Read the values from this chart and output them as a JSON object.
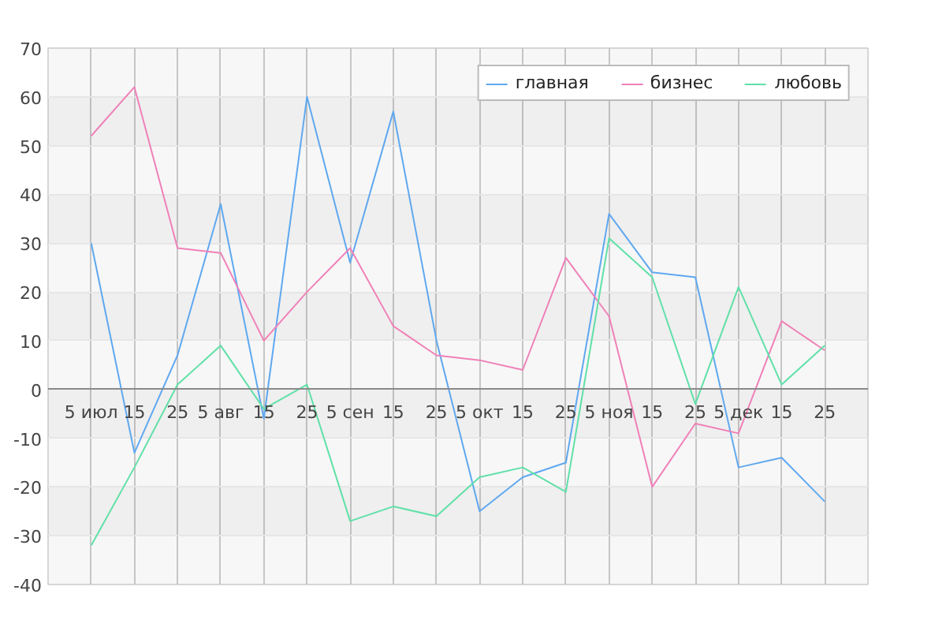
{
  "chart_data": {
    "type": "line",
    "categories": [
      "5 июл",
      "15",
      "25",
      "5 авг",
      "15",
      "25",
      "5 сен",
      "15",
      "25",
      "5 окт",
      "15",
      "25",
      "5 ноя",
      "15",
      "25",
      "5 дек",
      "15",
      "25"
    ],
    "series": [
      {
        "name": "главная",
        "color": "#5fa8f0",
        "values": [
          30,
          -13,
          7,
          38,
          -6,
          60,
          26,
          57,
          10,
          -25,
          -18,
          -15,
          36,
          24,
          23,
          -16,
          -14,
          -23
        ]
      },
      {
        "name": "бизнес",
        "color": "#f080b8",
        "values": [
          52,
          62,
          29,
          28,
          10,
          20,
          29,
          13,
          7,
          6,
          4,
          27,
          15,
          -20,
          -7,
          -9,
          14,
          8
        ]
      },
      {
        "name": "любовь",
        "color": "#60e0a8",
        "values": [
          -32,
          -16,
          1,
          9,
          -4,
          1,
          -27,
          -24,
          -26,
          -18,
          -16,
          -21,
          31,
          23,
          -3,
          21,
          1,
          9
        ]
      }
    ],
    "ylim": [
      -40,
      70
    ],
    "yticks": [
      -40,
      -30,
      -20,
      -10,
      0,
      10,
      20,
      30,
      40,
      50,
      60,
      70
    ],
    "grid": true,
    "legend": "top right"
  }
}
